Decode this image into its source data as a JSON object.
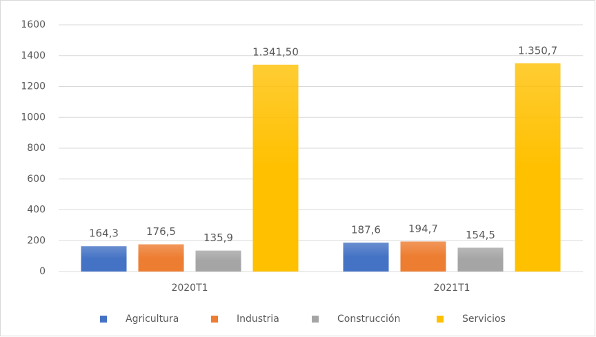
{
  "chart_data": {
    "type": "bar",
    "categories": [
      "2020T1",
      "2021T1"
    ],
    "series": [
      {
        "name": "Agricultura",
        "color": "#4472c4",
        "values": [
          164.3,
          187.6
        ],
        "value_labels": [
          "164,3",
          "187,6"
        ]
      },
      {
        "name": "Industria",
        "color": "#ed7d31",
        "values": [
          176.5,
          194.7
        ],
        "value_labels": [
          "176,5",
          "194,7"
        ]
      },
      {
        "name": "Construcción",
        "color": "#a5a5a5",
        "values": [
          135.9,
          154.5
        ],
        "value_labels": [
          "135,9",
          "154,5"
        ]
      },
      {
        "name": "Servicios",
        "color": "#ffc000",
        "values": [
          1341.5,
          1350.7
        ],
        "value_labels": [
          "1.341,50",
          "1.350,7"
        ]
      }
    ],
    "ylim": [
      0,
      1600
    ],
    "yticks": [
      0,
      200,
      400,
      600,
      800,
      1000,
      1200,
      1400,
      1600
    ],
    "grid": true,
    "legend": "bottom"
  }
}
